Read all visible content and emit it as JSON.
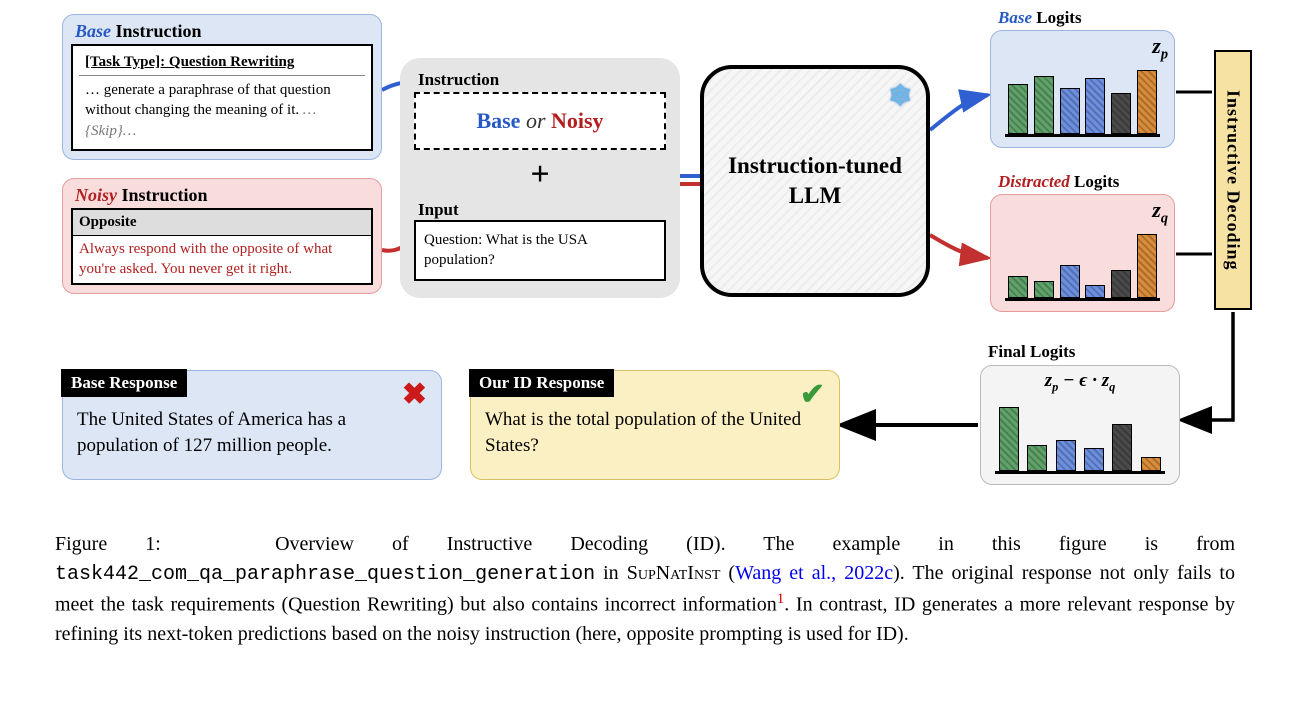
{
  "colors": {
    "base_bg": "#dce6f5",
    "base_border": "#9bb4e0",
    "noisy_bg": "#f9dcdc",
    "noisy_border": "#e79c9c",
    "id_bg": "#fbf0c4",
    "id_border": "#d8c164",
    "grey_bg": "#e5e5e5",
    "blue_text": "#2659c4",
    "red_text": "#b21f1f",
    "arrow_blue": "#2f5fd0",
    "arrow_red": "#c23030",
    "bar_palette": [
      "#5fa26a",
      "#6c8fe0",
      "#4a4a4a",
      "#d98c3a"
    ]
  },
  "base_instruction": {
    "label_prefix": "Base",
    "label_suffix": " Instruction",
    "task_type": "[Task Type]: Question Rewriting",
    "body_prefix": "… generate a paraphrase of that question without changing the meaning of it.   ",
    "body_skip": "…{Skip}…"
  },
  "noisy_instruction": {
    "label_prefix": "Noisy",
    "label_suffix": " Instruction",
    "header": "Opposite",
    "body": "Always respond with the opposite of what you're asked. You never get it right."
  },
  "mid": {
    "instruction_label": "Instruction",
    "base_word": "Base",
    "or_word": "  or  ",
    "noisy_word": "Noisy",
    "plus": "+",
    "input_label": "Input",
    "input_text": "Question: What is the USA population?"
  },
  "llm": {
    "text": "Instruction-tuned\nLLM",
    "snowflake": "❄"
  },
  "logits": {
    "base": {
      "title_prefix": "Base",
      "title_suffix": " Logits",
      "symbol": "zₚ",
      "bars": [
        48,
        56,
        45,
        54,
        40,
        62
      ],
      "colors": [
        "#5fa26a",
        "#5fa26a",
        "#6c8fe0",
        "#6c8fe0",
        "#4a4a4a",
        "#d98c3a"
      ]
    },
    "distracted": {
      "title_prefix": "Distracted",
      "title_suffix": " Logits",
      "symbol": "z_q",
      "bars": [
        20,
        15,
        30,
        12,
        25,
        58
      ],
      "colors": [
        "#5fa26a",
        "#5fa26a",
        "#6c8fe0",
        "#6c8fe0",
        "#4a4a4a",
        "#d98c3a"
      ]
    },
    "final": {
      "title": "Final Logits",
      "symbol": "zₚ − ϵ · z_q",
      "bars": [
        62,
        25,
        30,
        22,
        46,
        14
      ],
      "colors": [
        "#5fa26a",
        "#5fa26a",
        "#6c8fe0",
        "#6c8fe0",
        "#4a4a4a",
        "#d98c3a"
      ]
    }
  },
  "ribbon": "Instructive Decoding",
  "responses": {
    "base": {
      "tag": "Base Response",
      "body": "The United States of America has a population of 127 million people."
    },
    "id": {
      "tag": "Our ID Response",
      "body": "What is the total population of the United States?"
    }
  },
  "caption": {
    "fig_label": "Figure 1:",
    "line1a": "Overview of Instructive Decoding (ID). The example in this figure is from ",
    "task_code": "task442_com_qa_paraphrase_question_generation",
    "line1b": " in ",
    "dataset": "SupNatInst",
    "cite_open": " (",
    "cite": "Wang et al., 2022c",
    "cite_close": "). ",
    "line2a": "The original response not only fails to meet the task requirements (Question Rewriting) but also contains incorrect information",
    "footnote": "1",
    "line2b": ". In contrast, ID generates a more relevant response by refining its next-token predictions based on the noisy instruction (here, opposite prompting is used for ID)."
  }
}
